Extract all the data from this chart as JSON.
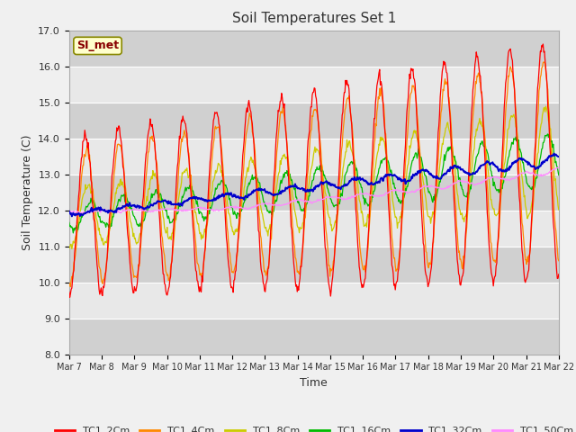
{
  "title": "Soil Temperatures Set 1",
  "xlabel": "Time",
  "ylabel": "Soil Temperature (C)",
  "ylim": [
    8.0,
    17.0
  ],
  "yticks": [
    8.0,
    9.0,
    10.0,
    11.0,
    12.0,
    13.0,
    14.0,
    15.0,
    16.0,
    17.0
  ],
  "xtick_labels": [
    "Mar 7",
    "Mar 8",
    "Mar 9",
    "Mar 10",
    "Mar 11",
    "Mar 12",
    "Mar 13",
    "Mar 14",
    "Mar 15",
    "Mar 16",
    "Mar 17",
    "Mar 18",
    "Mar 19",
    "Mar 20",
    "Mar 21",
    "Mar 22"
  ],
  "legend_label": "SI_met",
  "series_colors": {
    "TC1_2Cm": "#ff0000",
    "TC1_4Cm": "#ff8800",
    "TC1_8Cm": "#cccc00",
    "TC1_16Cm": "#00bb00",
    "TC1_32Cm": "#0000cc",
    "TC1_50Cm": "#ff88ff"
  },
  "fig_bg": "#f0f0f0",
  "stripe_light": "#e8e8e8",
  "stripe_dark": "#d0d0d0"
}
